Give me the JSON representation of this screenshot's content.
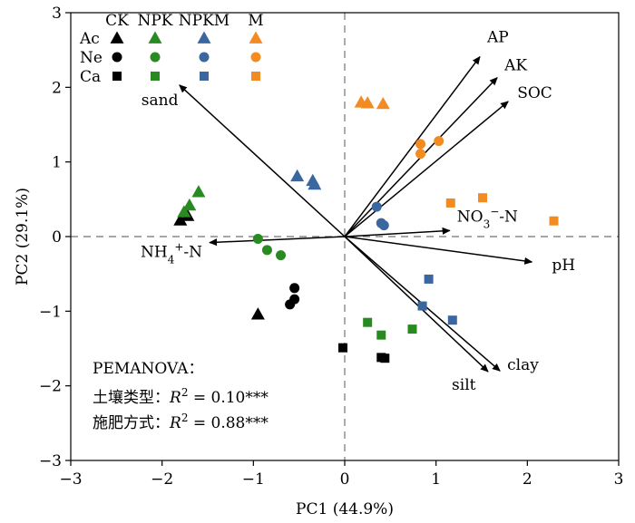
{
  "chart_data": {
    "type": "scatter",
    "xlabel": "PC1 (44.9%)",
    "ylabel": "PC2 (29.1%)",
    "xlim": [
      -3,
      3
    ],
    "ylim": [
      -3,
      3
    ],
    "xticks": [
      "−3",
      "−2",
      "−1",
      "0",
      "1",
      "2",
      "3"
    ],
    "yticks": [
      "−3",
      "−2",
      "−1",
      "0",
      "1",
      "2",
      "3"
    ],
    "grid": false,
    "zero_lines": "dashed",
    "legend": {
      "placement": "top-left",
      "treatments": [
        "CK",
        "NPK",
        "NPKM",
        "M"
      ],
      "soils": [
        "Ac",
        "Ne",
        "Ca"
      ]
    },
    "colors": {
      "CK": "#000000",
      "NPK": "#2a8a22",
      "NPKM": "#3a67a0",
      "M": "#f28c22"
    },
    "markers": {
      "Ac": "triangle",
      "Ne": "circle",
      "Ca": "square"
    },
    "points": [
      {
        "soil": "Ac",
        "treatment": "CK",
        "x": -1.8,
        "y": 0.22
      },
      {
        "soil": "Ac",
        "treatment": "CK",
        "x": -1.72,
        "y": 0.28
      },
      {
        "soil": "Ac",
        "treatment": "CK",
        "x": -0.95,
        "y": -1.04
      },
      {
        "soil": "Ac",
        "treatment": "NPK",
        "x": -1.76,
        "y": 0.33
      },
      {
        "soil": "Ac",
        "treatment": "NPK",
        "x": -1.7,
        "y": 0.42
      },
      {
        "soil": "Ac",
        "treatment": "NPK",
        "x": -1.6,
        "y": 0.6
      },
      {
        "soil": "Ac",
        "treatment": "NPKM",
        "x": -0.52,
        "y": 0.81
      },
      {
        "soil": "Ac",
        "treatment": "NPKM",
        "x": -0.35,
        "y": 0.75
      },
      {
        "soil": "Ac",
        "treatment": "NPKM",
        "x": -0.33,
        "y": 0.7
      },
      {
        "soil": "Ac",
        "treatment": "M",
        "x": 0.18,
        "y": 1.8
      },
      {
        "soil": "Ac",
        "treatment": "M",
        "x": 0.25,
        "y": 1.79
      },
      {
        "soil": "Ac",
        "treatment": "M",
        "x": 0.42,
        "y": 1.78
      },
      {
        "soil": "Ne",
        "treatment": "CK",
        "x": -0.55,
        "y": -0.69
      },
      {
        "soil": "Ne",
        "treatment": "CK",
        "x": -0.55,
        "y": -0.84
      },
      {
        "soil": "Ne",
        "treatment": "CK",
        "x": -0.6,
        "y": -0.91
      },
      {
        "soil": "Ne",
        "treatment": "NPK",
        "x": -0.95,
        "y": -0.03
      },
      {
        "soil": "Ne",
        "treatment": "NPK",
        "x": -0.85,
        "y": -0.18
      },
      {
        "soil": "Ne",
        "treatment": "NPK",
        "x": -0.7,
        "y": -0.25
      },
      {
        "soil": "Ne",
        "treatment": "NPKM",
        "x": 0.35,
        "y": 0.4
      },
      {
        "soil": "Ne",
        "treatment": "NPKM",
        "x": 0.4,
        "y": 0.18
      },
      {
        "soil": "Ne",
        "treatment": "NPKM",
        "x": 0.43,
        "y": 0.15
      },
      {
        "soil": "Ne",
        "treatment": "M",
        "x": 0.83,
        "y": 1.24
      },
      {
        "soil": "Ne",
        "treatment": "M",
        "x": 0.83,
        "y": 1.11
      },
      {
        "soil": "Ne",
        "treatment": "M",
        "x": 1.03,
        "y": 1.28
      },
      {
        "soil": "Ca",
        "treatment": "CK",
        "x": -0.02,
        "y": -1.49
      },
      {
        "soil": "Ca",
        "treatment": "CK",
        "x": 0.4,
        "y": -1.62
      },
      {
        "soil": "Ca",
        "treatment": "CK",
        "x": 0.44,
        "y": -1.63
      },
      {
        "soil": "Ca",
        "treatment": "NPK",
        "x": 0.25,
        "y": -1.15
      },
      {
        "soil": "Ca",
        "treatment": "NPK",
        "x": 0.4,
        "y": -1.32
      },
      {
        "soil": "Ca",
        "treatment": "NPK",
        "x": 0.74,
        "y": -1.24
      },
      {
        "soil": "Ca",
        "treatment": "NPKM",
        "x": 0.85,
        "y": -0.93
      },
      {
        "soil": "Ca",
        "treatment": "NPKM",
        "x": 0.92,
        "y": -0.57
      },
      {
        "soil": "Ca",
        "treatment": "NPKM",
        "x": 1.18,
        "y": -1.12
      },
      {
        "soil": "Ca",
        "treatment": "M",
        "x": 1.16,
        "y": 0.45
      },
      {
        "soil": "Ca",
        "treatment": "M",
        "x": 1.51,
        "y": 0.52
      },
      {
        "soil": "Ca",
        "treatment": "M",
        "x": 2.29,
        "y": 0.21
      }
    ],
    "vectors": [
      {
        "name": "AP",
        "x": 1.48,
        "y": 2.41
      },
      {
        "name": "AK",
        "x": 1.67,
        "y": 2.13
      },
      {
        "name": "SOC",
        "x": 1.79,
        "y": 1.81
      },
      {
        "name": "sand",
        "x": -1.81,
        "y": 2.03
      },
      {
        "name": "NO3−-N",
        "x": 1.15,
        "y": 0.08
      },
      {
        "name": "NH4+-N",
        "x": -1.48,
        "y": -0.08
      },
      {
        "name": "pH",
        "x": 2.05,
        "y": -0.34
      },
      {
        "name": "silt",
        "x": 1.57,
        "y": -1.81
      },
      {
        "name": "clay",
        "x": 1.7,
        "y": -1.8
      }
    ],
    "annotations": {
      "title": "PEMANOVA：",
      "soil_type_label": "土壤类型：",
      "soil_type_stat": "R2 = 0.10***",
      "fertilization_label": "施肥方式：",
      "fertilization_stat": "R2 = 0.88***"
    }
  }
}
